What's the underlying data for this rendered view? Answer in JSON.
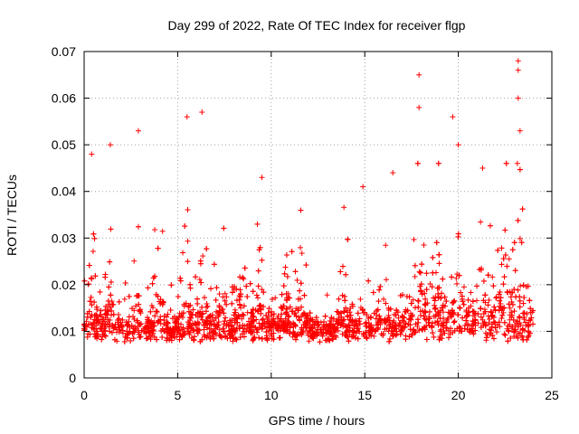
{
  "chart_data": {
    "type": "scatter",
    "title": "Day 299 of 2022, Rate Of TEC Index for receiver flgp",
    "xlabel": "GPS time / hours",
    "ylabel": "ROTI / TECUs",
    "xlim": [
      0,
      25
    ],
    "ylim": [
      0,
      0.07
    ],
    "xticks": [
      "0",
      "5",
      "10",
      "15",
      "20",
      "25"
    ],
    "yticks": [
      "0",
      "0.01",
      "0.02",
      "0.03",
      "0.04",
      "0.05",
      "0.06",
      "0.07"
    ],
    "grid": true,
    "marker": "+",
    "color": "#ff0000",
    "series": [
      {
        "name": "ROTI",
        "x_range": [
          0,
          24
        ],
        "typical_baseline": 0.01,
        "notable_points": [
          {
            "x": 0.4,
            "y": 0.048
          },
          {
            "x": 1.4,
            "y": 0.05
          },
          {
            "x": 2.9,
            "y": 0.053
          },
          {
            "x": 5.5,
            "y": 0.056
          },
          {
            "x": 6.3,
            "y": 0.057
          },
          {
            "x": 9.5,
            "y": 0.043
          },
          {
            "x": 14.9,
            "y": 0.041
          },
          {
            "x": 16.5,
            "y": 0.044
          },
          {
            "x": 17.9,
            "y": 0.065
          },
          {
            "x": 17.9,
            "y": 0.058
          },
          {
            "x": 19.7,
            "y": 0.056
          },
          {
            "x": 20.0,
            "y": 0.05
          },
          {
            "x": 21.3,
            "y": 0.045
          },
          {
            "x": 23.2,
            "y": 0.068
          },
          {
            "x": 23.2,
            "y": 0.066
          },
          {
            "x": 23.2,
            "y": 0.06
          },
          {
            "x": 23.3,
            "y": 0.053
          }
        ]
      }
    ]
  }
}
